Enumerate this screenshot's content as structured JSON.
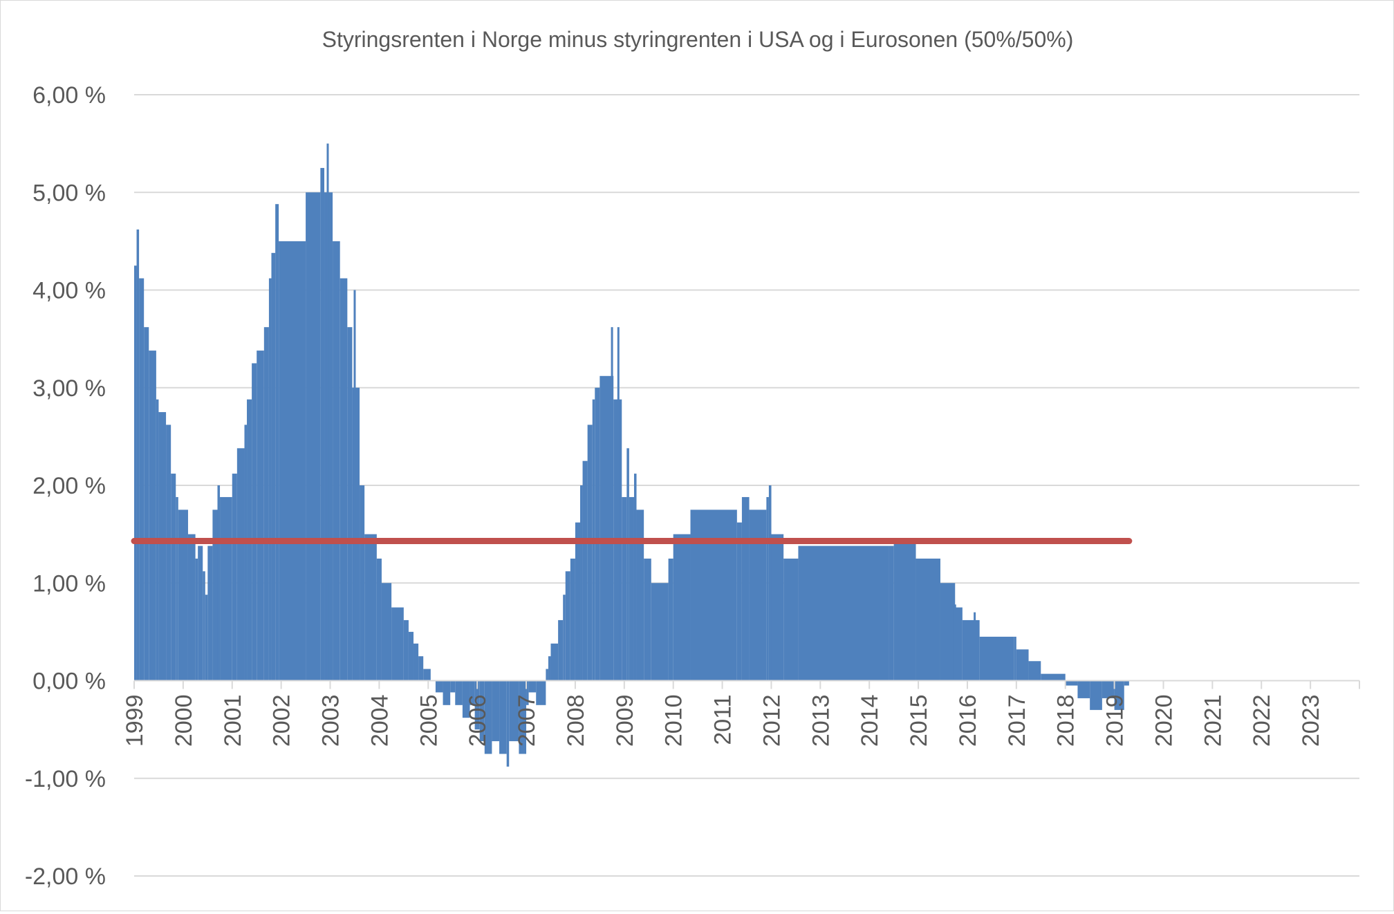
{
  "chart_data": {
    "type": "area",
    "title": "Styringsrenten i Norge minus styringrenten i USA og i Eurosonen (50%/50%)",
    "xlabel": "",
    "ylabel": "",
    "ylim": [
      -2,
      6
    ],
    "xlim": [
      1999,
      2024
    ],
    "grid": true,
    "legend": "none",
    "y_ticks": [
      6,
      5,
      4,
      3,
      2,
      1,
      0,
      -1,
      -2
    ],
    "y_tick_labels": [
      "6,00 %",
      "5,00 %",
      "4,00 %",
      "3,00 %",
      "2,00 %",
      "1,00 %",
      "0,00 %",
      "-1,00 %",
      "-2,00 %"
    ],
    "x_tick_labels": [
      "1999",
      "2000",
      "2001",
      "2002",
      "2003",
      "2004",
      "2005",
      "2006",
      "2007",
      "2008",
      "2009",
      "2010",
      "2011",
      "2012",
      "2013",
      "2014",
      "2015",
      "2016",
      "2017",
      "2018",
      "2019",
      "2020",
      "2021",
      "2022",
      "2023"
    ],
    "series": [
      {
        "type": "area",
        "color": "#4f81bd",
        "points": [
          [
            1999.0,
            4.25
          ],
          [
            1999.05,
            4.62
          ],
          [
            1999.1,
            4.12
          ],
          [
            1999.2,
            3.62
          ],
          [
            1999.3,
            3.38
          ],
          [
            1999.45,
            2.88
          ],
          [
            1999.5,
            2.75
          ],
          [
            1999.65,
            2.62
          ],
          [
            1999.75,
            2.12
          ],
          [
            1999.85,
            1.88
          ],
          [
            1999.9,
            1.75
          ],
          [
            2000.1,
            1.5
          ],
          [
            2000.25,
            1.25
          ],
          [
            2000.3,
            1.38
          ],
          [
            2000.4,
            1.12
          ],
          [
            2000.45,
            0.88
          ],
          [
            2000.5,
            1.38
          ],
          [
            2000.6,
            1.75
          ],
          [
            2000.7,
            2.0
          ],
          [
            2000.75,
            1.88
          ],
          [
            2001.0,
            2.12
          ],
          [
            2001.1,
            2.38
          ],
          [
            2001.25,
            2.62
          ],
          [
            2001.3,
            2.88
          ],
          [
            2001.4,
            3.25
          ],
          [
            2001.5,
            3.38
          ],
          [
            2001.65,
            3.62
          ],
          [
            2001.75,
            4.12
          ],
          [
            2001.8,
            4.38
          ],
          [
            2001.88,
            4.88
          ],
          [
            2001.95,
            4.5
          ],
          [
            2002.5,
            5.0
          ],
          [
            2002.8,
            5.25
          ],
          [
            2002.88,
            5.0
          ],
          [
            2003.05,
            4.5
          ],
          [
            2003.2,
            4.12
          ],
          [
            2003.35,
            3.62
          ],
          [
            2003.45,
            3.0
          ],
          [
            2003.6,
            2.0
          ],
          [
            2003.7,
            1.5
          ],
          [
            2003.95,
            1.25
          ],
          [
            2004.05,
            1.0
          ],
          [
            2004.25,
            0.75
          ],
          [
            2004.5,
            0.62
          ],
          [
            2004.6,
            0.5
          ],
          [
            2004.7,
            0.38
          ],
          [
            2004.8,
            0.25
          ],
          [
            2004.9,
            0.12
          ],
          [
            2005.05,
            0.0
          ],
          [
            2005.15,
            -0.12
          ],
          [
            2005.3,
            -0.25
          ],
          [
            2005.45,
            -0.12
          ],
          [
            2005.55,
            -0.25
          ],
          [
            2005.7,
            -0.38
          ],
          [
            2005.85,
            -0.25
          ],
          [
            2005.95,
            -0.5
          ],
          [
            2006.05,
            -0.62
          ],
          [
            2006.15,
            -0.75
          ],
          [
            2006.3,
            -0.62
          ],
          [
            2006.45,
            -0.75
          ],
          [
            2006.6,
            -0.88
          ],
          [
            2006.65,
            -0.62
          ],
          [
            2006.85,
            -0.75
          ],
          [
            2007.0,
            -0.25
          ],
          [
            2007.05,
            -0.12
          ],
          [
            2007.2,
            -0.25
          ],
          [
            2007.4,
            0.12
          ],
          [
            2007.45,
            0.25
          ],
          [
            2007.5,
            0.38
          ],
          [
            2007.65,
            0.62
          ],
          [
            2007.75,
            0.88
          ],
          [
            2007.8,
            1.12
          ],
          [
            2007.9,
            1.25
          ],
          [
            2008.0,
            1.62
          ],
          [
            2008.1,
            2.0
          ],
          [
            2008.15,
            2.25
          ],
          [
            2008.25,
            2.62
          ],
          [
            2008.35,
            2.88
          ],
          [
            2008.4,
            3.0
          ],
          [
            2008.5,
            3.12
          ],
          [
            2008.78,
            2.88
          ],
          [
            2008.95,
            1.88
          ],
          [
            2009.05,
            2.38
          ],
          [
            2009.1,
            1.88
          ],
          [
            2009.2,
            2.12
          ],
          [
            2009.25,
            1.75
          ],
          [
            2009.4,
            1.25
          ],
          [
            2009.55,
            1.0
          ],
          [
            2009.9,
            1.25
          ],
          [
            2010.0,
            1.5
          ],
          [
            2010.35,
            1.75
          ],
          [
            2011.3,
            1.62
          ],
          [
            2011.4,
            1.88
          ],
          [
            2011.55,
            1.75
          ],
          [
            2011.9,
            1.88
          ],
          [
            2011.95,
            2.0
          ],
          [
            2012.0,
            1.5
          ],
          [
            2012.25,
            1.25
          ],
          [
            2012.55,
            1.38
          ],
          [
            2014.4,
            1.38
          ],
          [
            2014.5,
            1.45
          ],
          [
            2014.9,
            1.45
          ],
          [
            2014.95,
            1.25
          ],
          [
            2015.45,
            1.0
          ],
          [
            2015.75,
            0.75
          ],
          [
            2015.9,
            0.62
          ],
          [
            2016.25,
            0.45
          ],
          [
            2016.95,
            0.45
          ],
          [
            2017.0,
            0.32
          ],
          [
            2017.25,
            0.2
          ],
          [
            2017.5,
            0.07
          ],
          [
            2018.0,
            -0.05
          ],
          [
            2018.25,
            -0.18
          ],
          [
            2018.5,
            -0.3
          ],
          [
            2018.75,
            -0.18
          ],
          [
            2019.0,
            -0.3
          ],
          [
            2019.2,
            -0.05
          ],
          [
            2019.3,
            0.0
          ]
        ],
        "spikes": [
          [
            2002.95,
            5.5
          ],
          [
            2003.5,
            4.0
          ],
          [
            2008.88,
            3.62
          ],
          [
            2008.75,
            3.62
          ],
          [
            2011.98,
            2.0
          ],
          [
            2015.75,
            0.78
          ],
          [
            2016.15,
            0.7
          ]
        ]
      },
      {
        "type": "line",
        "color": "#c0504d",
        "constant": 1.43,
        "x_start": 1999.0,
        "x_end": 2019.3
      }
    ]
  }
}
